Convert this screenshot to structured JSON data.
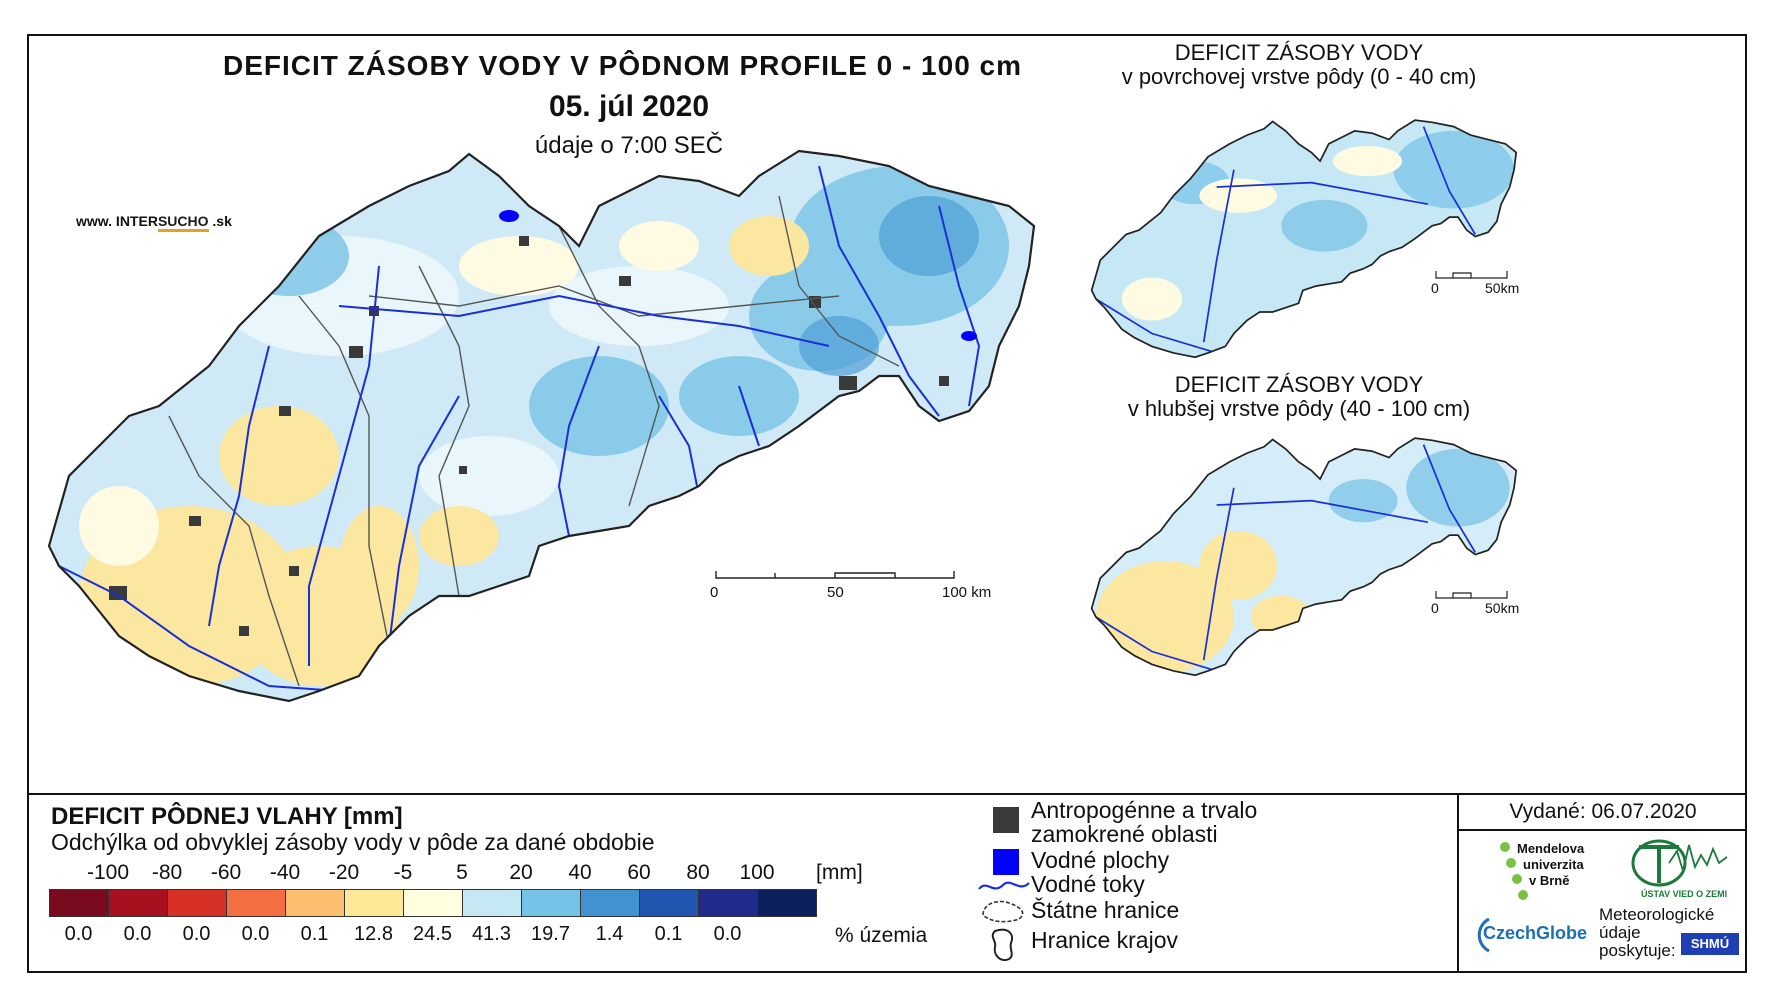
{
  "main_title": "DEFICIT ZÁSOBY VODY V PÔDNOM PROFILE 0 - 100 cm",
  "date": "05. júl 2020",
  "data_time": "údaje o 7:00 SEČ",
  "website": {
    "prefix": "www. INTER",
    "highlight": "SUCHO",
    "suffix": " .sk"
  },
  "main_scale": {
    "labels": [
      "0",
      "50",
      "100 km"
    ]
  },
  "inset_top": {
    "title_line1": "DEFICIT ZÁSOBY VODY",
    "title_line2": "v povrchovej vrstve pôdy (0 - 40 cm)",
    "scale_labels": [
      "0",
      "50km"
    ]
  },
  "inset_bottom": {
    "title_line1": "DEFICIT ZÁSOBY VODY",
    "title_line2": "v hlubšej vrstve pôdy (40 - 100 cm)",
    "scale_labels": [
      "0",
      "50km"
    ]
  },
  "legend": {
    "title": "DEFICIT PÔDNEJ VLAHY [mm]",
    "subtitle": "Odchýlka od obvyklej zásoby vody v pôde za dané obdobie",
    "ticks": [
      "-100",
      "-80",
      "-60",
      "-40",
      "-20",
      "-5",
      "5",
      "20",
      "40",
      "60",
      "80",
      "100"
    ],
    "unit": "[mm]",
    "colors": [
      "#7a0a1e",
      "#a8101f",
      "#d73027",
      "#f46d43",
      "#fdbf6f",
      "#fee999",
      "#ffffe0",
      "#c6e8f5",
      "#74c2e6",
      "#4392d0",
      "#2156b0",
      "#202a8c",
      "#0a1f5c"
    ],
    "percentages": [
      "0.0",
      "0.0",
      "0.0",
      "0.0",
      "0.1",
      "12.8",
      "24.5",
      "41.3",
      "19.7",
      "1.4",
      "0.1",
      "0.0"
    ],
    "pct_unit": "% územia"
  },
  "map_key": {
    "urban_line1": "Antropogénne a trvalo",
    "urban_line2": "zamokrené oblasti",
    "water_bodies": "Vodné plochy",
    "rivers": "Vodné toky",
    "state_border": "Štátne hranice",
    "region_border": "Hranice krajov",
    "colors": {
      "urban": "#3a3a3a",
      "water": "#0000ff",
      "river": "#1a2fd6"
    }
  },
  "issued": "Vydané: 06.07.2020",
  "logos": {
    "mendel_line1": "Mendelova",
    "mendel_line2": "univerzita",
    "mendel_line3": "v Brně",
    "ustav": "ÚSTAV VIED O ZEMI",
    "czechglobe": "CzechGlobe",
    "meteo_line1": "Meteorologické",
    "meteo_line2": "údaje",
    "meteo_line3": "poskytuje:",
    "shmu": "SHMÚ"
  }
}
